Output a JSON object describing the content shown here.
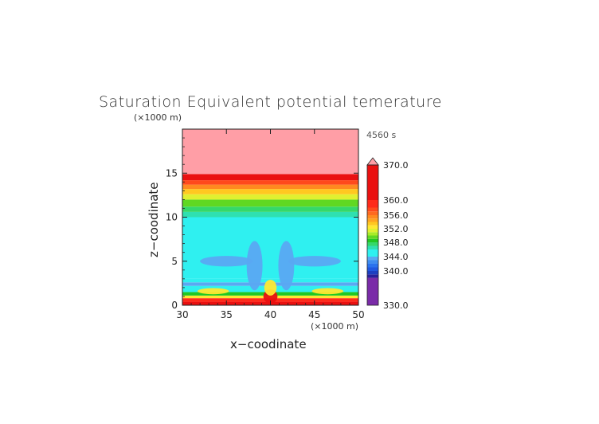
{
  "chart_data": {
    "type": "heatmap",
    "title": "Saturation Equivalent potential temerature",
    "xlabel": "x−coodinate",
    "ylabel": "z−coodinate",
    "x_unit": "(×1000 m)",
    "y_unit": "(×1000 m)",
    "time_label": "4560 s",
    "xlim": [
      30,
      50
    ],
    "ylim": [
      0,
      20
    ],
    "x_ticks": [
      30,
      35,
      40,
      45,
      50
    ],
    "y_ticks": [
      0,
      5,
      10,
      15
    ],
    "x_tick_labels": [
      "30",
      "35",
      "40",
      "45",
      "50"
    ],
    "y_tick_labels": [
      "0",
      "5",
      "10",
      "15"
    ],
    "field_by_height": [
      {
        "z_from": 0.0,
        "z_to": 0.4,
        "value": 365
      },
      {
        "z_from": 0.4,
        "z_to": 0.8,
        "value": 358
      },
      {
        "z_from": 0.8,
        "z_to": 1.1,
        "value": 352
      },
      {
        "z_from": 1.1,
        "z_to": 1.5,
        "value": 348
      },
      {
        "z_from": 1.5,
        "z_to": 2.2,
        "value": 345
      },
      {
        "z_from": 2.2,
        "z_to": 2.6,
        "value": 343
      },
      {
        "z_from": 2.6,
        "z_to": 3.0,
        "value": 345
      },
      {
        "z_from": 3.0,
        "z_to": 10.0,
        "value": 345
      },
      {
        "z_from": 10.0,
        "z_to": 10.6,
        "value": 346
      },
      {
        "z_from": 10.6,
        "z_to": 11.2,
        "value": 347
      },
      {
        "z_from": 11.2,
        "z_to": 12.0,
        "value": 349
      },
      {
        "z_from": 12.0,
        "z_to": 12.6,
        "value": 351
      },
      {
        "z_from": 12.6,
        "z_to": 13.2,
        "value": 353
      },
      {
        "z_from": 13.2,
        "z_to": 13.7,
        "value": 355
      },
      {
        "z_from": 13.7,
        "z_to": 14.2,
        "value": 357
      },
      {
        "z_from": 14.2,
        "z_to": 14.9,
        "value": 361
      },
      {
        "z_from": 14.9,
        "z_to": 20.0,
        "value": 371
      }
    ],
    "colorbar": {
      "min": 330,
      "max": 370,
      "tick_labels": [
        "370.0",
        "360.0",
        "356.0",
        "352.0",
        "348.0",
        "344.0",
        "340.0",
        "330.0"
      ],
      "tick_values": [
        370,
        360,
        356,
        352,
        348,
        344,
        340,
        330
      ],
      "extend": "max",
      "over_color": "#ff9ea6",
      "levels": [
        {
          "from": 330,
          "to": 338,
          "color": "#7a2ba8"
        },
        {
          "from": 338,
          "to": 339,
          "color": "#28209a"
        },
        {
          "from": 339,
          "to": 340,
          "color": "#1d3fc1"
        },
        {
          "from": 340,
          "to": 341,
          "color": "#2057e0"
        },
        {
          "from": 341,
          "to": 342,
          "color": "#2a72ee"
        },
        {
          "from": 342,
          "to": 343,
          "color": "#3f8cf0"
        },
        {
          "from": 343,
          "to": 344,
          "color": "#5aa8f2"
        },
        {
          "from": 344,
          "to": 346,
          "color": "#2ff0f0"
        },
        {
          "from": 346,
          "to": 347,
          "color": "#2fe0b0"
        },
        {
          "from": 347,
          "to": 348,
          "color": "#35d86a"
        },
        {
          "from": 348,
          "to": 349,
          "color": "#22c822"
        },
        {
          "from": 349,
          "to": 350,
          "color": "#60d822"
        },
        {
          "from": 350,
          "to": 351,
          "color": "#a8ec28"
        },
        {
          "from": 351,
          "to": 352,
          "color": "#e0f030"
        },
        {
          "from": 352,
          "to": 353,
          "color": "#ffe830"
        },
        {
          "from": 353,
          "to": 354,
          "color": "#ffc820"
        },
        {
          "from": 354,
          "to": 355,
          "color": "#ffa420"
        },
        {
          "from": 355,
          "to": 356,
          "color": "#ff8a20"
        },
        {
          "from": 356,
          "to": 357,
          "color": "#ff6a20"
        },
        {
          "from": 357,
          "to": 358,
          "color": "#ff4a1c"
        },
        {
          "from": 358,
          "to": 360,
          "color": "#ff2a1a"
        },
        {
          "from": 360,
          "to": 370,
          "color": "#ea1010"
        }
      ]
    },
    "features": [
      {
        "kind": "blob",
        "value": 343,
        "cx": 35.0,
        "cz": 5.0,
        "rx": 3.0,
        "rz": 0.6
      },
      {
        "kind": "blob",
        "value": 343,
        "cx": 45.0,
        "cz": 5.0,
        "rx": 3.0,
        "rz": 0.6
      },
      {
        "kind": "plume",
        "value": 343,
        "cx": 38.2,
        "cz": 4.5,
        "rx": 0.9,
        "rz": 2.8
      },
      {
        "kind": "plume",
        "value": 343,
        "cx": 41.8,
        "cz": 4.5,
        "rx": 0.9,
        "rz": 2.8
      },
      {
        "kind": "bump",
        "value": 360,
        "cx": 40.0,
        "cz": 1.0,
        "rx": 0.8,
        "rz": 0.8
      },
      {
        "kind": "bump",
        "value": 352,
        "cx": 40.0,
        "cz": 2.0,
        "rx": 0.7,
        "rz": 0.9
      },
      {
        "kind": "blob",
        "value": 352,
        "cx": 33.5,
        "cz": 1.6,
        "rx": 1.8,
        "rz": 0.35
      },
      {
        "kind": "blob",
        "value": 352,
        "cx": 46.5,
        "cz": 1.6,
        "rx": 1.8,
        "rz": 0.35
      }
    ]
  }
}
